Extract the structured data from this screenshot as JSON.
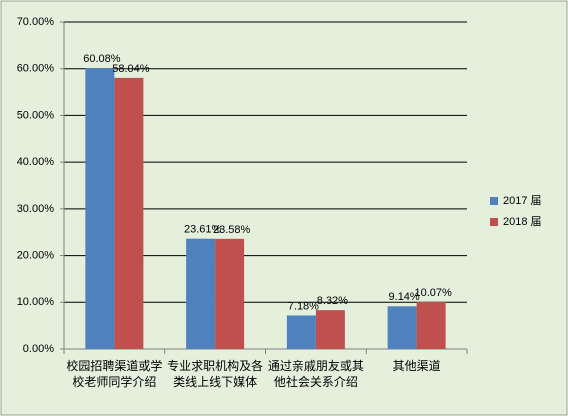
{
  "chart_data": {
    "type": "bar",
    "categories": [
      "校园招聘渠道或学校老师同学介绍",
      "专业求职机构及各类线上线下媒体",
      "通过亲戚朋友或其他社会关系介绍",
      "其他渠道"
    ],
    "series": [
      {
        "name": "2017 届",
        "color": "#4f81bd",
        "values": [
          60.08,
          23.61,
          7.18,
          9.14
        ],
        "value_labels": [
          "60.08%",
          "23.61%",
          "7.18%",
          "9.14%"
        ]
      },
      {
        "name": "2018 届",
        "color": "#c0504d",
        "values": [
          58.04,
          23.58,
          8.32,
          10.07
        ],
        "value_labels": [
          "58.04%",
          "23.58%",
          "8.32%",
          "10.07%"
        ]
      }
    ],
    "ylim": [
      0,
      70
    ],
    "yticks": [
      {
        "value": 0,
        "label": "0.00%"
      },
      {
        "value": 10,
        "label": "10.00%"
      },
      {
        "value": 20,
        "label": "20.00%"
      },
      {
        "value": 30,
        "label": "30.00%"
      },
      {
        "value": 40,
        "label": "40.00%"
      },
      {
        "value": 50,
        "label": "50.00%"
      },
      {
        "value": 60,
        "label": "60.00%"
      },
      {
        "value": 70,
        "label": "70.00%"
      }
    ],
    "grid": true,
    "legend": "right"
  }
}
